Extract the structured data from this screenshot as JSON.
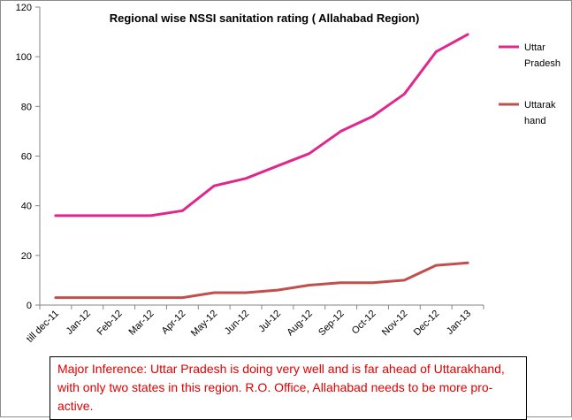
{
  "chart_data": {
    "type": "line",
    "title": "Regional wise NSSI sanitation rating ( Allahabad Region)",
    "xlabel": "",
    "ylabel": "",
    "categories": [
      "till dec-11",
      "Jan-12",
      "Feb-12",
      "Mar-12",
      "Apr-12",
      "May-12",
      "Jun-12",
      "Jul-12",
      "Aug-12",
      "Sep-12",
      "Oct-12",
      "Nov-12",
      "Dec-12",
      "Jan-13"
    ],
    "ylim": [
      0,
      120
    ],
    "yticks": [
      0,
      20,
      40,
      60,
      80,
      100,
      120
    ],
    "grid": false,
    "legend_position": "right",
    "series": [
      {
        "name_lines": [
          "Uttar",
          "Pradesh"
        ],
        "color": "#e0288c",
        "values": [
          36,
          36,
          36,
          36,
          38,
          48,
          51,
          56,
          61,
          70,
          76,
          85,
          102,
          109
        ]
      },
      {
        "name_lines": [
          "Uttarak",
          "hand"
        ],
        "color": "#c0504d",
        "values": [
          3,
          3,
          3,
          3,
          3,
          5,
          5,
          6,
          8,
          9,
          9,
          10,
          16,
          17
        ]
      }
    ]
  },
  "inference": {
    "text": "Major Inference: Uttar Pradesh is doing very well and is far ahead of Uttarakhand, with only two states in this region. R.O. Office, Allahabad needs to be more pro-active."
  }
}
